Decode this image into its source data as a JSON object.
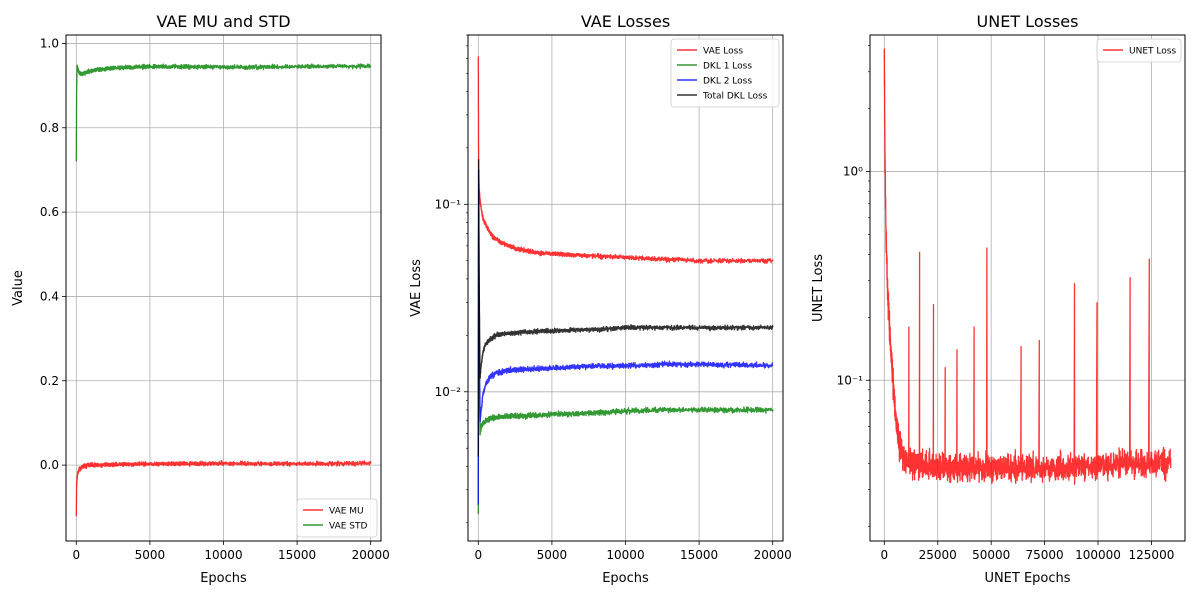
{
  "chart_data": [
    {
      "type": "line",
      "title": "VAE MU and STD",
      "xlabel": "Epochs",
      "ylabel": "Value",
      "xlim": [
        -700,
        20700
      ],
      "ylim": [
        -0.18,
        1.02
      ],
      "yscale": "linear",
      "xticks": [
        0,
        5000,
        10000,
        15000,
        20000
      ],
      "xtick_labels": [
        "0",
        "5000",
        "10000",
        "15000",
        "20000"
      ],
      "yticks": [
        0.0,
        0.2,
        0.4,
        0.6,
        0.8,
        1.0
      ],
      "ytick_labels": [
        "0.0",
        "0.2",
        "0.4",
        "0.6",
        "0.8",
        "1.0"
      ],
      "grid": true,
      "legend_position": "lower-right",
      "series": [
        {
          "name": "VAE MU",
          "color": "#ff0000",
          "x": [
            0,
            20,
            50,
            100,
            200,
            400,
            800,
            1500,
            3000,
            5000,
            7500,
            10000,
            12500,
            15000,
            17500,
            20000
          ],
          "y": [
            -0.12,
            -0.05,
            -0.03,
            -0.02,
            -0.01,
            -0.005,
            0.0,
            0.0,
            0.002,
            0.003,
            0.003,
            0.004,
            0.003,
            0.003,
            0.004,
            0.004
          ],
          "noise": 0.007
        },
        {
          "name": "VAE STD",
          "color": "#008000",
          "x": [
            0,
            20,
            50,
            100,
            200,
            400,
            800,
            1500,
            3000,
            5000,
            7500,
            10000,
            12500,
            15000,
            17500,
            20000
          ],
          "y": [
            0.72,
            0.88,
            0.945,
            0.94,
            0.93,
            0.928,
            0.933,
            0.938,
            0.943,
            0.945,
            0.945,
            0.944,
            0.944,
            0.945,
            0.946,
            0.946
          ],
          "noise": 0.007
        }
      ]
    },
    {
      "type": "line",
      "title": "VAE Losses",
      "xlabel": "Epochs",
      "ylabel": "VAE Loss",
      "xlim": [
        -700,
        20700
      ],
      "ylim": [
        0.0016,
        0.8
      ],
      "yscale": "log",
      "xticks": [
        0,
        5000,
        10000,
        15000,
        20000
      ],
      "xtick_labels": [
        "0",
        "5000",
        "10000",
        "15000",
        "20000"
      ],
      "yticks": [
        0.01,
        0.1
      ],
      "ytick_labels": [
        "10⁻²",
        "10⁻¹"
      ],
      "grid": true,
      "legend_position": "upper-right",
      "series": [
        {
          "name": "VAE Loss",
          "color": "#ff0000",
          "x": [
            0,
            20,
            60,
            150,
            300,
            600,
            1000,
            1500,
            2500,
            4000,
            6000,
            8000,
            10000,
            12500,
            15000,
            17500,
            20000
          ],
          "y": [
            0.6,
            0.16,
            0.12,
            0.1,
            0.085,
            0.075,
            0.067,
            0.063,
            0.058,
            0.055,
            0.054,
            0.053,
            0.052,
            0.051,
            0.05,
            0.05,
            0.05
          ],
          "noise": 0.04
        },
        {
          "name": "DKL 1 Loss",
          "color": "#008000",
          "x": [
            0,
            20,
            60,
            120,
            200,
            300,
            500,
            800,
            1200,
            2000,
            4000,
            6000,
            8000,
            10000,
            12500,
            15000,
            17500,
            20000
          ],
          "y": [
            0.0023,
            0.15,
            0.02,
            0.006,
            0.0065,
            0.0068,
            0.007,
            0.0072,
            0.0073,
            0.0074,
            0.0075,
            0.0076,
            0.0077,
            0.0079,
            0.008,
            0.008,
            0.008,
            0.008
          ],
          "noise": 0.045
        },
        {
          "name": "DKL 2 Loss",
          "color": "#0000ff",
          "x": [
            0,
            20,
            60,
            120,
            200,
            300,
            500,
            800,
            1200,
            2000,
            4000,
            6000,
            8000,
            10000,
            12500,
            15000,
            17500,
            20000
          ],
          "y": [
            0.0025,
            0.15,
            0.02,
            0.007,
            0.008,
            0.0095,
            0.011,
            0.012,
            0.0125,
            0.013,
            0.0133,
            0.0135,
            0.0137,
            0.0138,
            0.014,
            0.014,
            0.0139,
            0.0138
          ],
          "noise": 0.045
        },
        {
          "name": "Total DKL Loss",
          "color": "#000000",
          "x": [
            0,
            20,
            60,
            120,
            200,
            300,
            500,
            800,
            1200,
            2000,
            4000,
            6000,
            8000,
            10000,
            12500,
            15000,
            17500,
            20000
          ],
          "y": [
            0.0045,
            0.17,
            0.04,
            0.012,
            0.014,
            0.016,
            0.018,
            0.019,
            0.02,
            0.0205,
            0.021,
            0.0213,
            0.0215,
            0.022,
            0.022,
            0.022,
            0.022,
            0.022
          ],
          "noise": 0.04
        }
      ]
    },
    {
      "type": "line",
      "title": "UNET Losses",
      "xlabel": "UNET Epochs",
      "ylabel": "UNET Loss",
      "xlim": [
        -6700,
        140700
      ],
      "ylim": [
        0.017,
        4.5
      ],
      "yscale": "log",
      "xticks": [
        0,
        25000,
        50000,
        75000,
        100000,
        125000
      ],
      "xtick_labels": [
        "0",
        "25000",
        "50000",
        "75000",
        "100000",
        "125000"
      ],
      "yticks": [
        0.1,
        1
      ],
      "ytick_labels": [
        "10⁻¹",
        "10⁰"
      ],
      "grid": true,
      "legend_position": "upper-right",
      "series": [
        {
          "name": "UNET Loss",
          "color": "#ff0000",
          "x": [
            0,
            300,
            800,
            1500,
            2500,
            4000,
            5500,
            7000,
            9000,
            12000,
            20000,
            30000,
            40000,
            50000,
            60000,
            70000,
            80000,
            90000,
            100000,
            110000,
            120000,
            130000,
            134000
          ],
          "y": [
            3.7,
            1.2,
            0.5,
            0.28,
            0.17,
            0.1,
            0.065,
            0.05,
            0.042,
            0.04,
            0.039,
            0.038,
            0.038,
            0.038,
            0.038,
            0.038,
            0.038,
            0.038,
            0.039,
            0.04,
            0.04,
            0.04,
            0.04
          ],
          "noise": 0.22,
          "spikes": [
            {
              "x": 11500,
              "y": 0.18
            },
            {
              "x": 16500,
              "y": 0.41
            },
            {
              "x": 23000,
              "y": 0.23
            },
            {
              "x": 28500,
              "y": 0.115
            },
            {
              "x": 34000,
              "y": 0.14
            },
            {
              "x": 42000,
              "y": 0.18
            },
            {
              "x": 48000,
              "y": 0.43
            },
            {
              "x": 64000,
              "y": 0.145
            },
            {
              "x": 72500,
              "y": 0.155
            },
            {
              "x": 89000,
              "y": 0.29
            },
            {
              "x": 99500,
              "y": 0.235
            },
            {
              "x": 115000,
              "y": 0.31
            },
            {
              "x": 124000,
              "y": 0.38
            }
          ]
        }
      ]
    }
  ]
}
